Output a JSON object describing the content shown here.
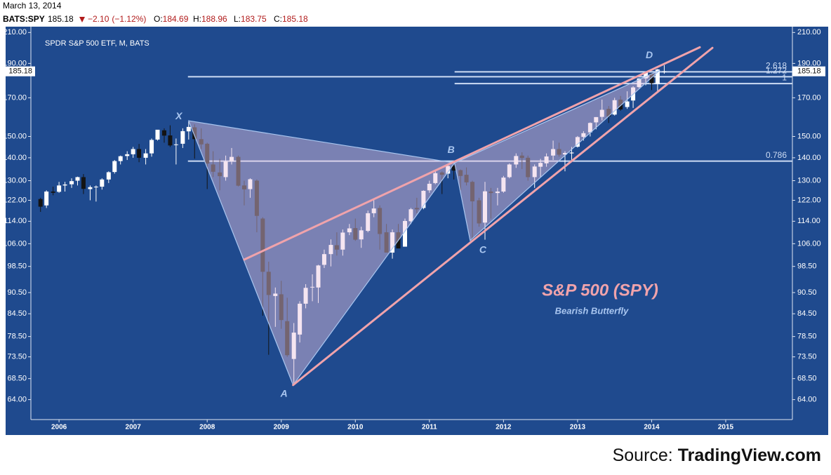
{
  "header": {
    "date": "March 13, 2014",
    "symbol": "BATS:SPY",
    "change": {
      "value": -2.1,
      "label": "−2.10"
    },
    "change_pct": {
      "value": -1.12,
      "label": "(−1.12%)"
    },
    "ohlc_prefixes": [
      "O:",
      "H:",
      "L:",
      "C:"
    ]
  },
  "chart_data": {
    "type": "candlestick",
    "title": "SPDR S&P 500 ETF, M, BATS",
    "x": [
      2005.75,
      2005.83,
      2005.92,
      2006,
      2006.08,
      2006.17,
      2006.25,
      2006.33,
      2006.42,
      2006.5,
      2006.58,
      2006.67,
      2006.75,
      2006.83,
      2006.92,
      2007,
      2007.08,
      2007.17,
      2007.25,
      2007.33,
      2007.42,
      2007.5,
      2007.58,
      2007.67,
      2007.75,
      2007.83,
      2007.92,
      2008,
      2008.08,
      2008.17,
      2008.25,
      2008.33,
      2008.42,
      2008.5,
      2008.58,
      2008.67,
      2008.75,
      2008.83,
      2008.92,
      2009,
      2009.08,
      2009.17,
      2009.25,
      2009.33,
      2009.42,
      2009.5,
      2009.58,
      2009.67,
      2009.75,
      2009.83,
      2009.92,
      2010,
      2010.08,
      2010.17,
      2010.25,
      2010.33,
      2010.42,
      2010.5,
      2010.58,
      2010.67,
      2010.75,
      2010.83,
      2010.92,
      2011,
      2011.08,
      2011.17,
      2011.25,
      2011.33,
      2011.42,
      2011.5,
      2011.58,
      2011.67,
      2011.75,
      2011.83,
      2011.92,
      2012,
      2012.08,
      2012.17,
      2012.25,
      2012.33,
      2012.42,
      2012.5,
      2012.58,
      2012.67,
      2012.75,
      2012.83,
      2012.92,
      2013,
      2013.08,
      2013.17,
      2013.25,
      2013.33,
      2013.42,
      2013.5,
      2013.58,
      2013.67,
      2013.75,
      2013.83,
      2013.92,
      2014,
      2014.08,
      2014.17
    ],
    "open": [
      122.5,
      120,
      125.5,
      125.4,
      128,
      128.5,
      130,
      131.5,
      126.5,
      127.5,
      127.5,
      130.5,
      133.7,
      138.5,
      140.8,
      141.6,
      144,
      140,
      142,
      148.5,
      153,
      150.5,
      146,
      146.5,
      152.5,
      154.5,
      148.7,
      146.5,
      137,
      133.5,
      131.5,
      138.4,
      140.4,
      128,
      126.5,
      130,
      115,
      96.8,
      89.5,
      90,
      82.5,
      73,
      79,
      87.3,
      92,
      92,
      99,
      102.5,
      105.5,
      104,
      110,
      111.5,
      107.5,
      110.5,
      117,
      119,
      110,
      103,
      110,
      105,
      114,
      119,
      119,
      126,
      129,
      133.5,
      133,
      136.5,
      134.5,
      132.5,
      129.5,
      122,
      113.5,
      125.5,
      124.9,
      125.5,
      131.5,
      137,
      141,
      140,
      131.5,
      136,
      137.5,
      141,
      144,
      141.5,
      142,
      145.1,
      149.8,
      152,
      157,
      159.8,
      164,
      161,
      169,
      165,
      168.5,
      176,
      181,
      183.9,
      177.9,
      184.69
    ],
    "high": [
      123,
      126,
      127.5,
      129.5,
      129.5,
      131,
      131.7,
      132.8,
      128,
      128,
      131,
      134,
      139,
      141,
      143,
      145,
      146.4,
      144,
      149,
      153,
      154,
      155.5,
      149,
      154,
      157.5,
      156,
      154,
      147,
      143,
      139.5,
      141,
      144.5,
      141,
      130,
      131,
      130.5,
      115.5,
      100,
      92,
      94,
      89,
      82,
      88,
      93,
      96,
      99,
      104,
      107.5,
      110,
      111,
      113,
      115,
      112,
      118,
      122,
      120,
      113,
      111,
      113,
      115,
      119,
      123,
      126,
      130,
      134.5,
      134,
      137,
      137.2,
      134.8,
      135.7,
      130,
      123,
      129.5,
      127,
      127,
      132,
      137.5,
      142,
      142.5,
      141,
      137,
      139.5,
      142,
      148,
      147,
      143,
      145,
      150.2,
      152.6,
      157,
      159.7,
      169,
      165.5,
      170,
      171,
      173.6,
      176.5,
      181,
      185,
      184.1,
      186.6,
      188.96
    ],
    "low": [
      117.5,
      119,
      124,
      125,
      125.5,
      127,
      128,
      124.5,
      122,
      121.5,
      126.3,
      129,
      133,
      137,
      139,
      140,
      138,
      137,
      140.5,
      148,
      147,
      145,
      137,
      144.5,
      148.5,
      139.6,
      144,
      126.5,
      131.5,
      126,
      130,
      137,
      127.6,
      120,
      123,
      110,
      84,
      74,
      81,
      80.5,
      73.5,
      67,
      77,
      86,
      88,
      87.5,
      98,
      98.5,
      102,
      102,
      109,
      107,
      104.6,
      110,
      115.5,
      104,
      103.5,
      101,
      104.5,
      105,
      113,
      117,
      118.5,
      125,
      128.5,
      124.5,
      131,
      130.5,
      126,
      128,
      107.4,
      112,
      107.4,
      115,
      120,
      125,
      131,
      135.5,
      135,
      130,
      127,
      131.5,
      136,
      139,
      140.5,
      134,
      138,
      144.7,
      148,
      150,
      153.5,
      158,
      156.7,
      160.5,
      163,
      164,
      164.5,
      175.5,
      177,
      174.3,
      173.7,
      183.75
    ],
    "close": [
      119.5,
      125.5,
      125,
      128,
      128.4,
      129.8,
      131.5,
      126.6,
      127.3,
      127.5,
      130.5,
      133.6,
      138.5,
      140.7,
      141.6,
      144,
      140,
      142,
      148.3,
      153.3,
      150.4,
      145.7,
      146.2,
      152.6,
      154.7,
      148.7,
      146.2,
      137.4,
      133.8,
      131.9,
      138.3,
      140.4,
      127.9,
      126.4,
      130.6,
      116,
      96.8,
      89.8,
      90.2,
      82.8,
      73.9,
      79.5,
      87.3,
      91.9,
      92.2,
      98.8,
      102.5,
      105.6,
      104,
      109.9,
      111.4,
      107.4,
      110.7,
      117,
      118.8,
      109.4,
      103,
      110,
      104.4,
      114.1,
      118.5,
      118.5,
      125.8,
      128.7,
      133.2,
      132.5,
      136.3,
      134.3,
      132,
      129.3,
      121.6,
      113.2,
      125.6,
      124.9,
      125.5,
      131.3,
      137,
      140.8,
      139.9,
      131.5,
      136.1,
      137.7,
      140.6,
      144,
      141.4,
      142.2,
      142.4,
      149.7,
      151.6,
      156.7,
      159.7,
      163.5,
      160,
      168.7,
      163.7,
      168,
      175.8,
      181,
      184.7,
      178.2,
      186.3,
      185.18
    ],
    "up_color": "#ffffff",
    "down_color": "#141414",
    "background": "#1f4a8e",
    "xlim": [
      2005.62,
      2015.9
    ],
    "xticks": [
      2006,
      2007,
      2008,
      2009,
      2010,
      2011,
      2012,
      2013,
      2014,
      2015
    ],
    "log_y": true,
    "ylim": [
      60,
      214
    ],
    "yticks": [
      {
        "value": 64,
        "label": "64.00"
      },
      {
        "value": 68.5,
        "label": "68.50"
      },
      {
        "value": 73.5,
        "label": "73.50"
      },
      {
        "value": 78.5,
        "label": "78.50"
      },
      {
        "value": 84.5,
        "label": "84.50"
      },
      {
        "value": 90.5,
        "label": "90.50"
      },
      {
        "value": 98.5,
        "label": "98.50"
      },
      {
        "value": 106,
        "label": "106.00"
      },
      {
        "value": 114,
        "label": "114.00"
      },
      {
        "value": 122,
        "label": "122.00"
      },
      {
        "value": 130,
        "label": "130.00"
      },
      {
        "value": 140,
        "label": "140.00"
      },
      {
        "value": 150,
        "label": "150.00"
      },
      {
        "value": 170,
        "label": "170.00"
      },
      {
        "value": 190,
        "label": "190.00"
      },
      {
        "value": 210,
        "label": "210.00"
      }
    ],
    "points": [
      {
        "label": "X",
        "x": 2007.75,
        "y": 157.8
      },
      {
        "label": "A",
        "x": 2009.16,
        "y": 67.1
      },
      {
        "label": "B",
        "x": 2011.34,
        "y": 137.7
      },
      {
        "label": "C",
        "x": 2011.55,
        "y": 107.1
      },
      {
        "label": "D",
        "x": 2014.11,
        "y": 185.8
      }
    ],
    "pattern_color": "#a9c6f0",
    "pattern_fill": "#e8c6e0",
    "trendlines": [
      {
        "from": [
          2008.5,
          100.7
        ],
        "to": [
          2014.65,
          200.2
        ]
      },
      {
        "from": [
          2009.16,
          67.1
        ],
        "to": [
          2014.82,
          199.8
        ]
      }
    ],
    "trendline_color": "#f0a3ab",
    "fib_levels": [
      {
        "ratio": 2.618,
        "price": 184.9,
        "from": 2011.34
      },
      {
        "ratio": 1.272,
        "price": 182.0,
        "from": 2007.74
      },
      {
        "ratio": 1,
        "price": 178.0,
        "from": 2011.34
      },
      {
        "ratio": 0.786,
        "price": 138.5,
        "from": 2007.74
      }
    ],
    "fib_color": "#cddcf4",
    "annotations": [
      "S&P 500 (SPY)",
      "Bearish Butterfly"
    ]
  },
  "footer": {
    "source_label": "Source:",
    "source": "TradingView.com"
  }
}
